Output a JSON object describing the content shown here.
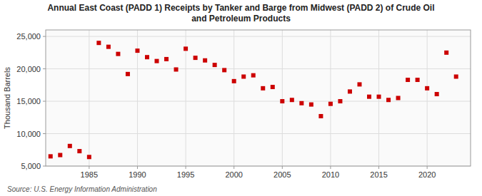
{
  "chart_data": {
    "type": "scatter",
    "title": "Annual East Coast (PADD 1) Receipts by Tanker and Barge from Midwest (PADD 2) of Crude Oil\nand Petroleum Products",
    "ylabel": "Thousand Barrels",
    "source": "Source: U.S. Energy Information Administration",
    "color": "#cc0000",
    "marker": "square",
    "grid": true,
    "x": [
      1981,
      1982,
      1983,
      1984,
      1985,
      1986,
      1987,
      1988,
      1989,
      1990,
      1991,
      1992,
      1993,
      1994,
      1995,
      1996,
      1997,
      1998,
      1999,
      2000,
      2001,
      2002,
      2003,
      2004,
      2005,
      2006,
      2007,
      2008,
      2009,
      2010,
      2011,
      2012,
      2013,
      2014,
      2015,
      2016,
      2017,
      2018,
      2019,
      2020,
      2021,
      2022,
      2023
    ],
    "values": [
      6500,
      6700,
      8100,
      7300,
      6400,
      24000,
      23400,
      22300,
      19200,
      22800,
      21800,
      21200,
      21500,
      19900,
      23100,
      21700,
      21300,
      20600,
      19800,
      18100,
      18800,
      19000,
      17000,
      17200,
      15000,
      15200,
      14700,
      14500,
      12700,
      14600,
      15000,
      16500,
      17600,
      15700,
      15700,
      15200,
      15500,
      18300,
      18300,
      17000,
      16100,
      22500,
      18800
    ],
    "xlim": [
      1980.5,
      2024.5
    ],
    "xticks": [
      1985,
      1990,
      1995,
      2000,
      2005,
      2010,
      2015,
      2020
    ],
    "ylim": [
      5000,
      26000
    ],
    "yticks": [
      {
        "value": 5000,
        "label": "5,000"
      },
      {
        "value": 10000,
        "label": "10,000"
      },
      {
        "value": 15000,
        "label": "15,000"
      },
      {
        "value": 20000,
        "label": "20,000"
      },
      {
        "value": 25000,
        "label": "25,000"
      }
    ]
  }
}
